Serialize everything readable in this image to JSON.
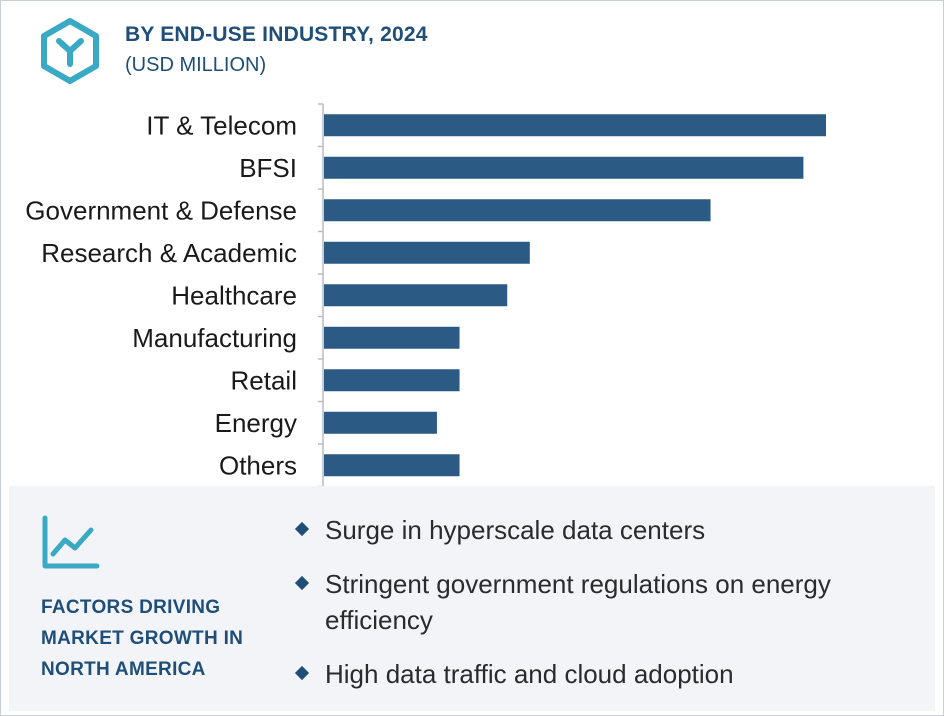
{
  "header": {
    "title": "BY END-USE INDUSTRY, 2024",
    "subtitle": "(USD MILLION)",
    "logo_icon": "brand-logo-hexagon-icon"
  },
  "colors": {
    "accent": "#1f4e79",
    "bar": "#2b5a85",
    "logo": "#3aa9c4",
    "panel_bg": "#f2f4f7"
  },
  "chart_data": {
    "type": "bar",
    "orientation": "horizontal",
    "title": "BY END-USE INDUSTRY, 2024",
    "subtitle": "(USD MILLION)",
    "categories": [
      "IT & Telecom",
      "BFSI",
      "Government & Defense",
      "Research & Academic",
      "Healthcare",
      "Manufacturing",
      "Retail",
      "Energy",
      "Others"
    ],
    "values": [
      100,
      95.5,
      77,
      41,
      36.5,
      27,
      27,
      22.5,
      27
    ],
    "xlim": [
      0,
      100
    ],
    "value_axis_labels_shown": false,
    "grid": false,
    "legend": "none"
  },
  "factors": {
    "icon": "trend-line-chart-icon",
    "title_lines": [
      "FACTORS DRIVING",
      "MARKET  GROWTH IN",
      "NORTH AMERICA"
    ],
    "items": [
      "Surge in hyperscale data centers",
      "Stringent government regulations on energy efficiency",
      "High data traffic and cloud adoption"
    ]
  }
}
